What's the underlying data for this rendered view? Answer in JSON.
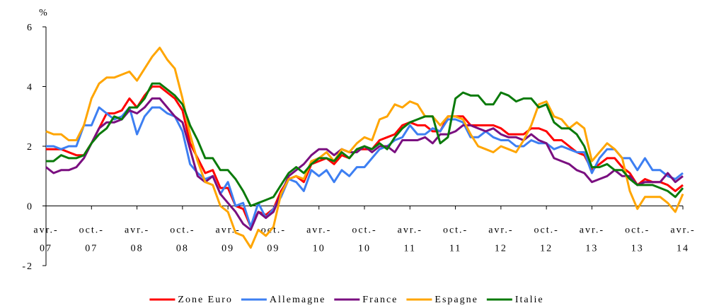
{
  "chart_data": {
    "type": "line",
    "y_label": "%",
    "categories": [
      "avr.-\n07",
      null,
      null,
      null,
      null,
      null,
      "oct.-\n07",
      null,
      null,
      null,
      null,
      null,
      "avr.-\n08",
      null,
      null,
      null,
      null,
      null,
      "oct.-\n08",
      null,
      null,
      null,
      null,
      null,
      "avr.-\n09",
      null,
      null,
      null,
      null,
      null,
      "oct.-\n09",
      null,
      null,
      null,
      null,
      null,
      "avr.-\n10",
      null,
      null,
      null,
      null,
      null,
      "oct.-\n10",
      null,
      null,
      null,
      null,
      null,
      "avr.-\n11",
      null,
      null,
      null,
      null,
      null,
      "oct.-\n11",
      null,
      null,
      null,
      null,
      null,
      "avr.-\n12",
      null,
      null,
      null,
      null,
      null,
      "oct.-\n12",
      null,
      null,
      null,
      null,
      null,
      "avr.-\n13",
      null,
      null,
      null,
      null,
      null,
      "oct.-\n13",
      null,
      null,
      null,
      null,
      null,
      "avr.-\n14"
    ],
    "series": [
      {
        "name": "Zone Euro",
        "color": "#ff0000",
        "values": [
          1.9,
          1.9,
          1.9,
          1.8,
          1.7,
          1.7,
          2.1,
          2.6,
          3.1,
          3.1,
          3.2,
          3.6,
          3.3,
          3.7,
          4.0,
          4.0,
          3.8,
          3.6,
          3.2,
          2.1,
          1.6,
          1.1,
          1.2,
          0.6,
          0.6,
          0.0,
          -0.1,
          -0.7,
          -0.2,
          -0.3,
          -0.1,
          0.5,
          0.9,
          1.0,
          0.8,
          1.4,
          1.5,
          1.6,
          1.4,
          1.7,
          1.6,
          1.9,
          1.9,
          1.9,
          2.2,
          2.3,
          2.4,
          2.7,
          2.8,
          2.7,
          2.7,
          2.5,
          2.5,
          3.0,
          3.0,
          3.0,
          2.7,
          2.7,
          2.7,
          2.7,
          2.6,
          2.4,
          2.4,
          2.4,
          2.6,
          2.6,
          2.5,
          2.2,
          2.2,
          2.0,
          1.8,
          1.7,
          1.2,
          1.4,
          1.6,
          1.6,
          1.3,
          1.1,
          0.7,
          0.9,
          0.8,
          0.8,
          0.7,
          0.5,
          0.7
        ]
      },
      {
        "name": "Allemagne",
        "color": "#3d7ff2",
        "values": [
          2.0,
          2.0,
          1.9,
          2.0,
          2.0,
          2.7,
          2.7,
          3.3,
          3.1,
          2.9,
          3.0,
          3.3,
          2.4,
          3.0,
          3.3,
          3.3,
          3.1,
          3.0,
          2.5,
          1.4,
          1.1,
          0.9,
          1.0,
          0.4,
          0.8,
          0.0,
          0.1,
          -0.7,
          0.1,
          -0.4,
          -0.1,
          0.3,
          0.9,
          0.8,
          0.5,
          1.2,
          1.0,
          1.2,
          0.8,
          1.2,
          1.0,
          1.3,
          1.3,
          1.6,
          1.9,
          2.0,
          2.2,
          2.3,
          2.7,
          2.4,
          2.4,
          2.6,
          2.5,
          2.9,
          2.9,
          2.8,
          2.3,
          2.3,
          2.5,
          2.3,
          2.2,
          2.2,
          2.0,
          2.0,
          2.2,
          2.1,
          2.1,
          1.9,
          2.0,
          1.9,
          1.8,
          1.8,
          1.1,
          1.6,
          1.9,
          1.9,
          1.6,
          1.6,
          1.2,
          1.6,
          1.2,
          1.2,
          1.0,
          0.9,
          1.1
        ]
      },
      {
        "name": "France",
        "color": "#7a0f80",
        "values": [
          1.3,
          1.1,
          1.2,
          1.2,
          1.3,
          1.6,
          2.1,
          2.6,
          2.8,
          2.8,
          2.9,
          3.2,
          3.1,
          3.3,
          3.6,
          3.6,
          3.3,
          3.0,
          2.8,
          1.9,
          1.0,
          0.8,
          1.0,
          0.4,
          0.1,
          -0.2,
          -0.6,
          -0.8,
          -0.2,
          -0.4,
          -0.2,
          0.4,
          1.0,
          1.2,
          1.4,
          1.7,
          1.9,
          1.9,
          1.7,
          1.9,
          1.8,
          1.8,
          2.0,
          1.8,
          2.0,
          2.0,
          1.8,
          2.2,
          2.2,
          2.2,
          2.3,
          2.1,
          2.4,
          2.4,
          2.5,
          2.7,
          2.7,
          2.6,
          2.5,
          2.6,
          2.4,
          2.3,
          2.3,
          2.2,
          2.4,
          2.2,
          2.1,
          1.6,
          1.5,
          1.4,
          1.2,
          1.1,
          0.8,
          0.9,
          1.0,
          1.2,
          1.0,
          1.0,
          0.7,
          0.8,
          0.8,
          0.8,
          1.1,
          0.8,
          1.0
        ]
      },
      {
        "name": "Espagne",
        "color": "#ffa500",
        "values": [
          2.5,
          2.4,
          2.4,
          2.2,
          2.2,
          2.7,
          3.6,
          4.1,
          4.3,
          4.3,
          4.4,
          4.5,
          4.2,
          4.6,
          5.0,
          5.3,
          4.9,
          4.6,
          3.6,
          2.4,
          1.5,
          0.8,
          0.7,
          0.0,
          -0.2,
          -0.9,
          -1.0,
          -1.4,
          -0.8,
          -1.0,
          -0.7,
          0.4,
          0.9,
          1.0,
          0.9,
          1.5,
          1.6,
          1.8,
          1.5,
          1.9,
          1.8,
          2.1,
          2.3,
          2.2,
          2.9,
          3.0,
          3.4,
          3.3,
          3.5,
          3.4,
          3.0,
          3.0,
          2.7,
          3.0,
          3.0,
          2.9,
          2.4,
          2.0,
          1.9,
          1.8,
          2.0,
          1.9,
          1.8,
          2.2,
          2.7,
          3.4,
          3.5,
          3.0,
          2.9,
          2.6,
          2.8,
          2.6,
          1.5,
          1.8,
          2.1,
          1.9,
          1.6,
          0.5,
          -0.1,
          0.3,
          0.3,
          0.3,
          0.1,
          -0.2,
          0.4
        ]
      },
      {
        "name": "Italie",
        "color": "#0a7a0a",
        "values": [
          1.5,
          1.5,
          1.7,
          1.6,
          1.6,
          1.7,
          2.1,
          2.4,
          2.6,
          3.0,
          2.9,
          3.3,
          3.3,
          3.6,
          4.1,
          4.1,
          3.9,
          3.7,
          3.4,
          2.7,
          2.2,
          1.6,
          1.6,
          1.2,
          1.2,
          0.9,
          0.5,
          0.0,
          0.1,
          0.2,
          0.3,
          0.7,
          1.1,
          1.3,
          1.1,
          1.4,
          1.6,
          1.6,
          1.5,
          1.8,
          1.6,
          1.9,
          2.0,
          1.9,
          2.1,
          1.9,
          2.3,
          2.6,
          2.8,
          2.9,
          3.0,
          3.0,
          2.1,
          2.3,
          3.6,
          3.8,
          3.7,
          3.7,
          3.4,
          3.4,
          3.8,
          3.7,
          3.5,
          3.6,
          3.6,
          3.3,
          3.4,
          2.8,
          2.6,
          2.6,
          2.4,
          2.0,
          1.3,
          1.3,
          1.4,
          1.2,
          1.2,
          0.9,
          0.7,
          0.7,
          0.7,
          0.6,
          0.5,
          0.3,
          0.6
        ]
      }
    ],
    "ylim": [
      -2,
      6
    ],
    "yticks": [
      -2,
      0,
      2,
      4,
      6
    ],
    "legend": "bottom"
  }
}
